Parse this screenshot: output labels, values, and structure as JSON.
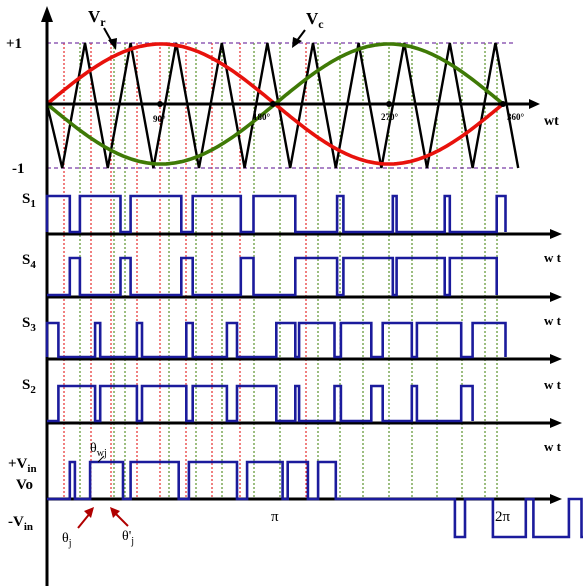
{
  "labels": {
    "vr": "V",
    "vr_sub": "r",
    "vc": "V",
    "vc_sub": "c",
    "plus_one": "+1",
    "minus_one": "-1",
    "deg90": "90°",
    "deg180": "180°",
    "deg270": "270°",
    "deg360": "360°",
    "wt": "wt",
    "w_t": "w t",
    "s1": "S",
    "s1_sub": "1",
    "s4": "S",
    "s4_sub": "4",
    "s3": "S",
    "s3_sub": "3",
    "s2": "S",
    "s2_sub": "2",
    "plus_vin": "+V",
    "plus_vin_sub": "in",
    "vo": "Vo",
    "minus_vin": "-V",
    "minus_vin_sub": "in",
    "pi": "π",
    "two_pi": "2π",
    "theta_wj": "θ",
    "theta_wj_sub": "wj",
    "theta_j": "θ",
    "theta_j_sub": "j",
    "theta_pj": "θ'",
    "theta_pj_sub": "j"
  },
  "colors": {
    "axis": "#000000",
    "reference": "#e8120c",
    "reference_inverted": "#3f7a06",
    "carrier": "#000000",
    "pulse": "#1b1b9c",
    "guide_red": "#e00000",
    "guide_green": "#3a7d00",
    "limit": "#7b3fa8",
    "arrow": "#b00000"
  },
  "gates": {
    "s1": [
      [
        0,
        18
      ],
      [
        26,
        58
      ],
      [
        66,
        106
      ],
      [
        115,
        153
      ],
      [
        163,
        196
      ],
      [
        229,
        234
      ],
      [
        273,
        276
      ],
      [
        314,
        318
      ],
      [
        355,
        362
      ]
    ],
    "s4": [
      [
        18,
        26
      ],
      [
        58,
        66
      ],
      [
        106,
        115
      ],
      [
        153,
        163
      ],
      [
        196,
        229
      ],
      [
        234,
        273
      ],
      [
        276,
        314
      ],
      [
        318,
        355
      ]
    ],
    "s3": [
      [
        0,
        9
      ],
      [
        38,
        42
      ],
      [
        71,
        75
      ],
      [
        110,
        115
      ],
      [
        142,
        150
      ],
      [
        181,
        196
      ],
      [
        199,
        227
      ],
      [
        232,
        256
      ],
      [
        265,
        288
      ],
      [
        292,
        327
      ],
      [
        336,
        362
      ]
    ],
    "s2": [
      [
        9,
        38
      ],
      [
        42,
        71
      ],
      [
        75,
        110
      ],
      [
        115,
        142
      ],
      [
        150,
        181
      ],
      [
        196,
        199
      ],
      [
        227,
        232
      ],
      [
        256,
        265
      ],
      [
        288,
        292
      ],
      [
        327,
        336
      ]
    ]
  }
}
